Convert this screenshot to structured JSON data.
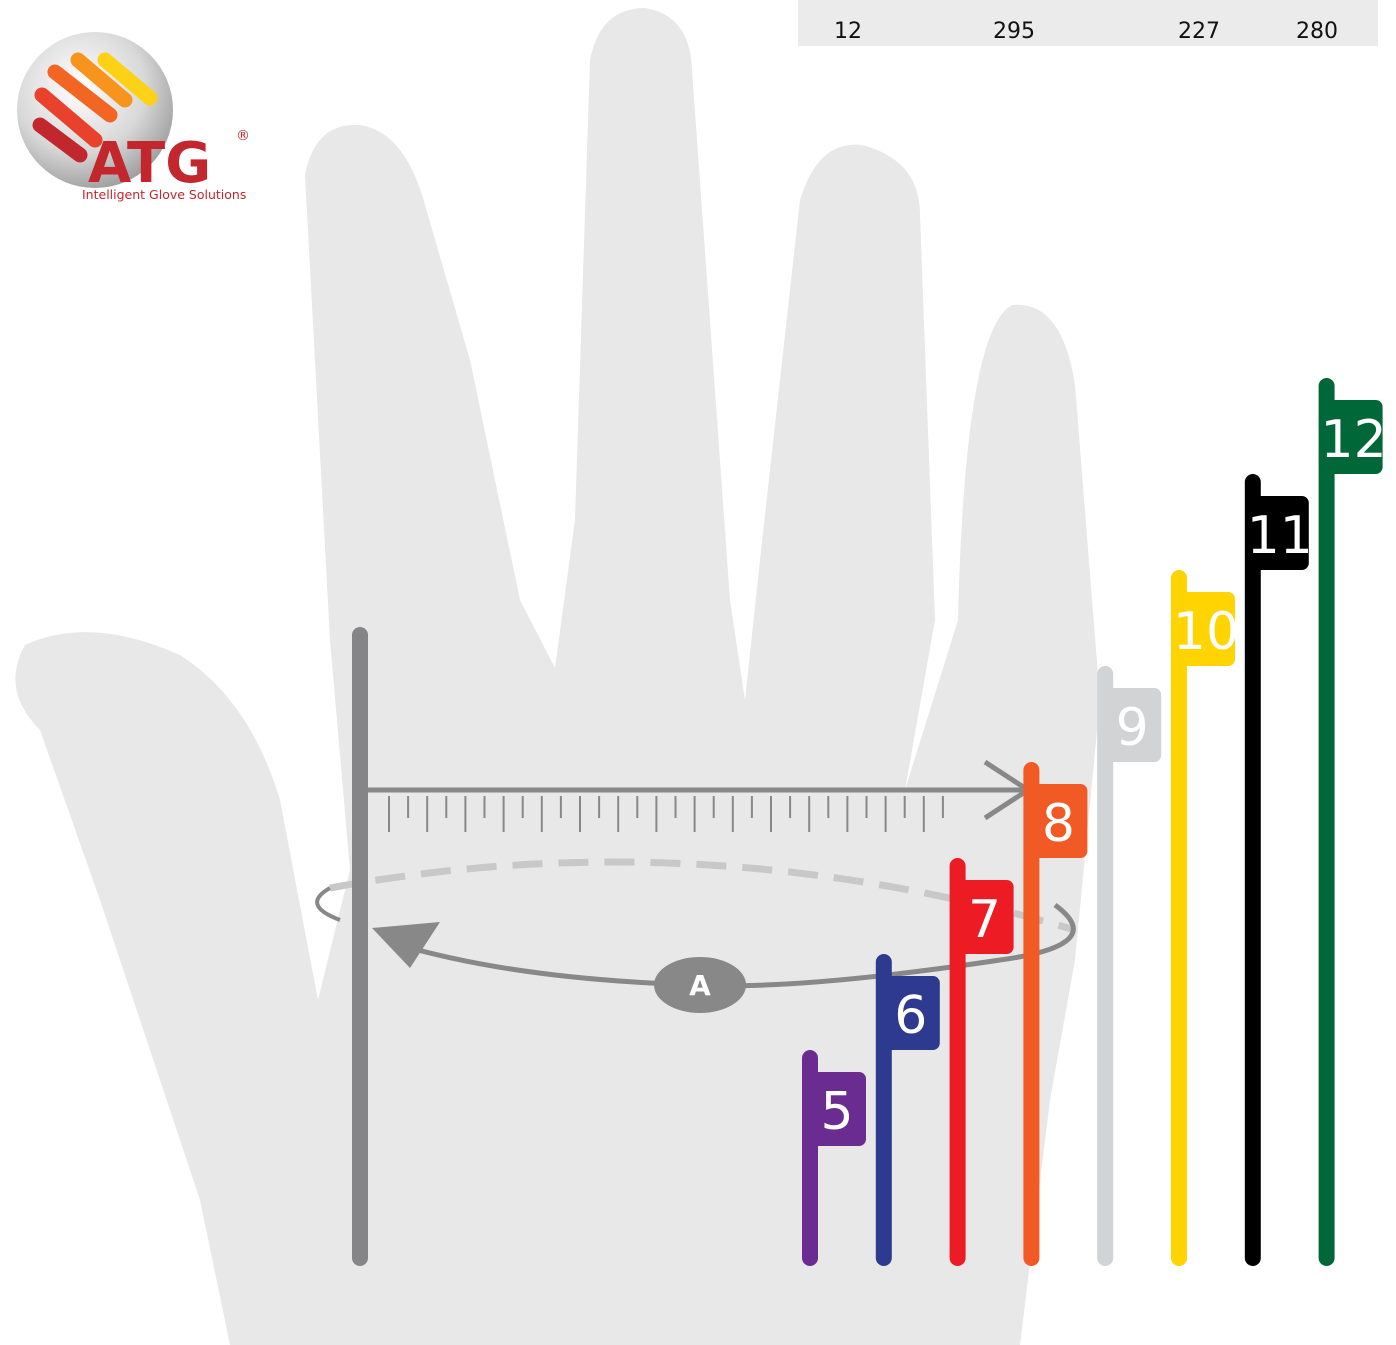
{
  "logo": {
    "name": "ATG",
    "registered": "®",
    "tagline": "Intelligent Glove Solutions"
  },
  "size_table": {
    "rows": [
      [
        "12",
        "295",
        "227",
        "280"
      ]
    ]
  },
  "measure_label": "A",
  "sizes": [
    {
      "label": "5",
      "color": "#6a2c91"
    },
    {
      "label": "6",
      "color": "#2e3a8f"
    },
    {
      "label": "7",
      "color": "#ed1c24"
    },
    {
      "label": "8",
      "color": "#f15a24"
    },
    {
      "label": "9",
      "color": "#d1d3d4"
    },
    {
      "label": "10",
      "color": "#ffd400"
    },
    {
      "label": "11",
      "color": "#000000"
    },
    {
      "label": "12",
      "color": "#006838"
    }
  ]
}
